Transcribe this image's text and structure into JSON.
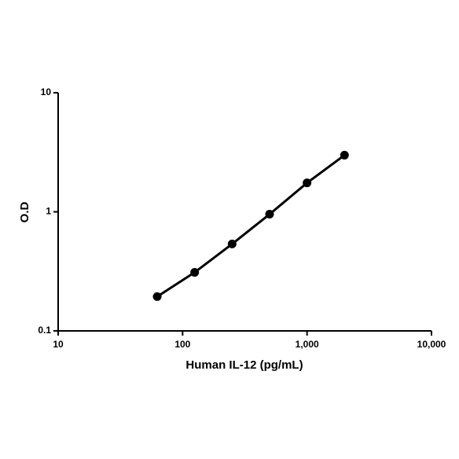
{
  "chart_data": {
    "type": "line",
    "x_label": "Human IL-12 (pg/mL)",
    "y_label": "O.D",
    "x": [
      62.5,
      125,
      250,
      500,
      1000,
      2000
    ],
    "values": [
      0.194,
      0.31,
      0.537,
      0.955,
      1.75,
      2.99
    ],
    "color": "#000000",
    "x_log": true,
    "y_log": true,
    "xlim": [
      10,
      10000
    ],
    "xticks": [
      10,
      100,
      {
        "value": 1000,
        "label": "1,000"
      },
      {
        "value": 10000,
        "label": "10,000"
      }
    ],
    "ylim": [
      0.1,
      10
    ],
    "yticks": [
      0.1,
      1,
      10
    ],
    "grid": false,
    "markers": true
  }
}
